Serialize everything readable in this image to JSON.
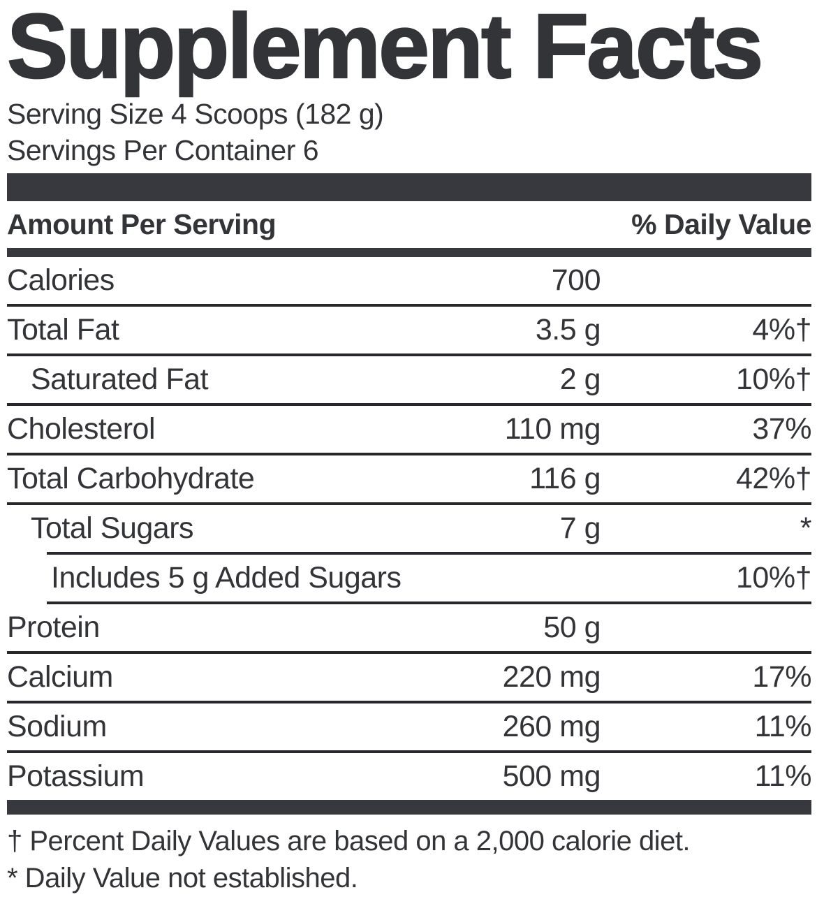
{
  "label": {
    "title": "Supplement Facts",
    "serving_size": "Serving Size 4 Scoops (182 g)",
    "servings_per_container": "Servings Per Container 6",
    "columns": {
      "amount_header": "Amount Per Serving",
      "dv_header": "% Daily Value"
    },
    "rows": [
      {
        "name": "Calories",
        "amount": "700",
        "dv": "",
        "indent": 0
      },
      {
        "name": "Total Fat",
        "amount": "3.5 g",
        "dv": "4%†",
        "indent": 0
      },
      {
        "name": "Saturated Fat",
        "amount": "2 g",
        "dv": "10%†",
        "indent": 1
      },
      {
        "name": "Cholesterol",
        "amount": "110 mg",
        "dv": "37%",
        "indent": 0
      },
      {
        "name": "Total Carbohydrate",
        "amount": "116 g",
        "dv": "42%†",
        "indent": 0
      },
      {
        "name": "Total Sugars",
        "amount": "7 g",
        "dv": "*",
        "indent": 1,
        "sep": false
      },
      {
        "name": "Includes 5 g Added Sugars",
        "amount": "",
        "dv": "10%†",
        "indent": 2
      },
      {
        "name": "Protein",
        "amount": "50 g",
        "dv": "",
        "indent": 0
      },
      {
        "name": "Calcium",
        "amount": "220 mg",
        "dv": "17%",
        "indent": 0
      },
      {
        "name": "Sodium",
        "amount": "260 mg",
        "dv": "11%",
        "indent": 0
      },
      {
        "name": "Potassium",
        "amount": "500 mg",
        "dv": "11%",
        "indent": 0,
        "sep": false
      }
    ],
    "footnotes": [
      "† Percent Daily Values are based on a 2,000 calorie diet.",
      "* Daily Value not established."
    ],
    "colors": {
      "ink": "#323438",
      "separator_line": "#26282c",
      "bar": "#38393f",
      "background": "#ffffff"
    }
  }
}
